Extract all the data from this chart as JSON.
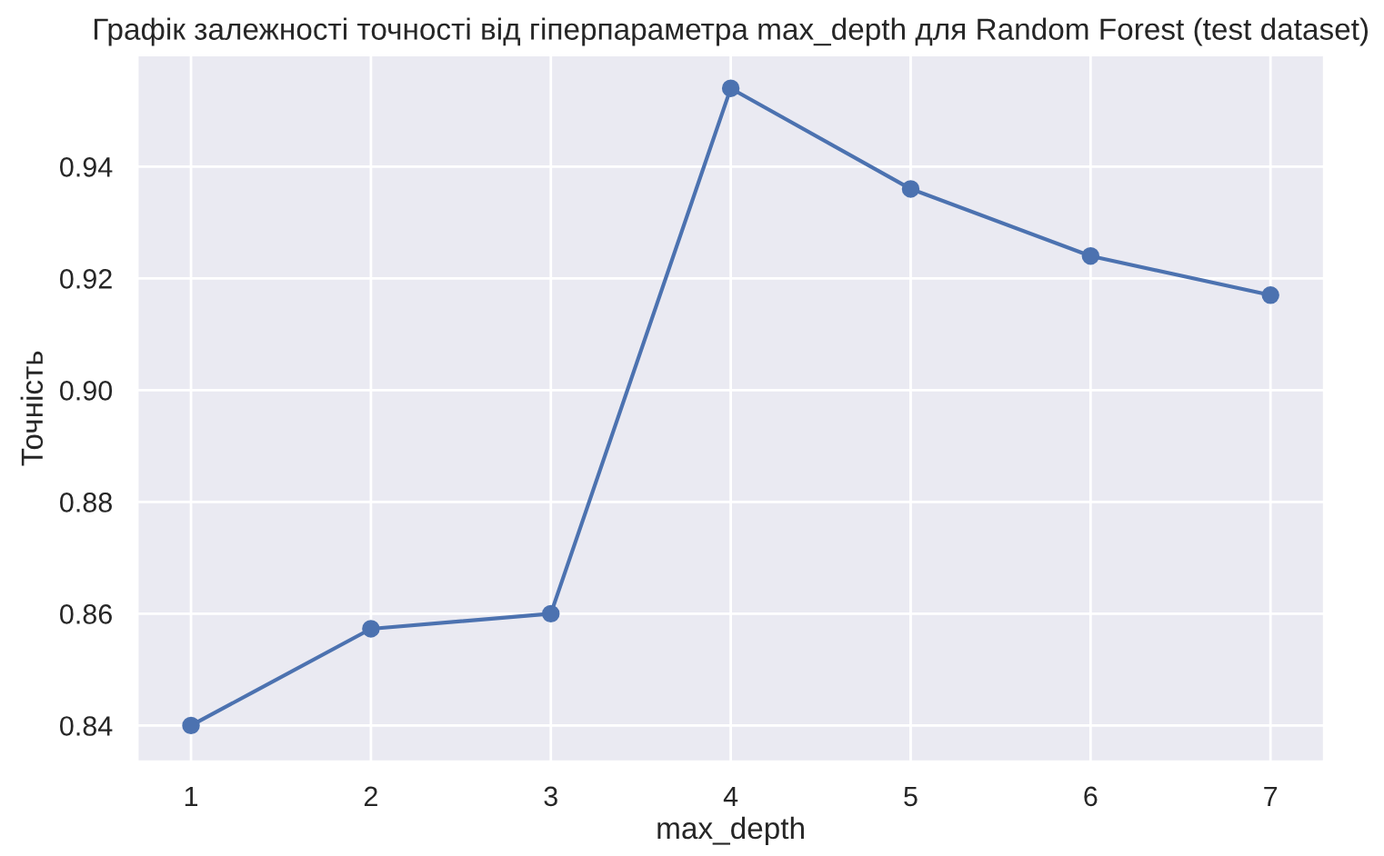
{
  "chart_data": {
    "type": "line",
    "title": "Графік залежності точності від гіперпараметра max_depth для Random Forest (test dataset)",
    "xlabel": "max_depth",
    "ylabel": "Точність",
    "x": [
      1,
      2,
      3,
      4,
      5,
      6,
      7
    ],
    "series": [
      {
        "color": "#4c72b0",
        "values": [
          0.84,
          0.8573,
          0.86,
          0.954,
          0.936,
          0.924,
          0.917
        ]
      }
    ],
    "xlim": [
      0.7,
      7.3
    ],
    "ylim": [
      0.8335,
      0.96
    ],
    "xticks": [
      1,
      2,
      3,
      4,
      5,
      6,
      7
    ],
    "yticks": [
      0.84,
      0.86,
      0.88,
      {
        "value": 0.9,
        "label": "0.90"
      },
      0.92,
      0.94
    ],
    "grid": true,
    "marker": "circle",
    "line_style": "solid"
  }
}
